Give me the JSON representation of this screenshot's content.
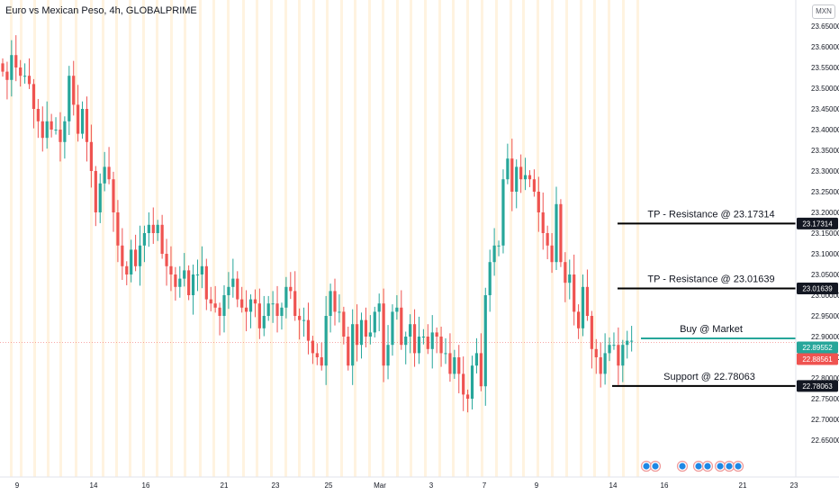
{
  "header": {
    "title": "Euro vs Mexican Peso, 4h, GLOBALPRIME",
    "currency_badge": "MXN"
  },
  "colors": {
    "up": "#26a69a",
    "down": "#ef5350",
    "session_band": "#fff3e0",
    "buy_line": "#26a69a",
    "level_line": "#000000",
    "event_icon": "#1e88e5"
  },
  "chart_data": {
    "type": "candlestick",
    "title": "Euro vs Mexican Peso, 4h, GLOBALPRIME",
    "price_axis": {
      "range": [
        22.62,
        23.69
      ],
      "ticks": [
        "23.65000",
        "23.60000",
        "23.55000",
        "23.50000",
        "23.45000",
        "23.40000",
        "23.35000",
        "23.30000",
        "23.25000",
        "23.20000",
        "23.15000",
        "23.10000",
        "23.05000",
        "23.00000",
        "22.95000",
        "22.90000",
        "22.85000",
        "22.80000",
        "22.75000",
        "22.70000",
        "22.65000"
      ]
    },
    "time_axis": {
      "labels": [
        "9",
        "14",
        "16",
        "21",
        "23",
        "25",
        "Mar",
        "3",
        "7",
        "9",
        "14",
        "16",
        "21",
        "23"
      ]
    },
    "closes": [
      23.54,
      23.52,
      23.58,
      23.55,
      23.53,
      23.53,
      23.51,
      23.45,
      23.42,
      23.38,
      23.42,
      23.4,
      23.4,
      23.37,
      23.42,
      23.53,
      23.46,
      23.39,
      23.45,
      23.37,
      23.3,
      23.2,
      23.27,
      23.31,
      23.28,
      23.2,
      23.12,
      23.07,
      23.05,
      23.11,
      23.07,
      23.12,
      23.15,
      23.17,
      23.15,
      23.17,
      23.1,
      23.07,
      23.05,
      23.02,
      23.04,
      23.06,
      23.0,
      23.05,
      23.05,
      23.07,
      22.99,
      22.98,
      22.97,
      22.95,
      23.0,
      23.02,
      23.04,
      22.99,
      22.97,
      22.96,
      22.99,
      22.98,
      22.92,
      22.95,
      22.98,
      22.98,
      22.95,
      22.97,
      23.02,
      23.01,
      22.95,
      22.94,
      22.94,
      22.89,
      22.86,
      22.85,
      22.83,
      22.95,
      23.01,
      22.96,
      22.96,
      22.9,
      22.83,
      22.93,
      22.88,
      22.94,
      22.9,
      22.91,
      22.96,
      22.98,
      22.83,
      22.88,
      22.96,
      22.97,
      22.88,
      22.9,
      22.93,
      22.86,
      22.9,
      22.9,
      22.87,
      22.91,
      22.9,
      22.86,
      22.86,
      22.81,
      22.85,
      22.81,
      22.76,
      22.75,
      22.83,
      22.86,
      22.78,
      23.0,
      23.08,
      23.12,
      23.12,
      23.28,
      23.33,
      23.25,
      23.31,
      23.28,
      23.29,
      23.28,
      23.25,
      23.2,
      23.15,
      23.12,
      23.08,
      23.22,
      23.08,
      23.03,
      23.05,
      22.96,
      22.92,
      23.02,
      22.95,
      22.87,
      22.85,
      22.81,
      22.86,
      22.88,
      22.88,
      22.83,
      22.88,
      22.89,
      22.89
    ],
    "annotations": [
      {
        "label": "TP - Resistance @ 23.17314",
        "price": 23.17314
      },
      {
        "label": "TP - Resistance @ 23.01639",
        "price": 23.01639
      },
      {
        "label": "Buy @ Market",
        "price": 22.89552
      },
      {
        "label": "Support @ 22.78063",
        "price": 22.78063
      }
    ],
    "price_tags": [
      {
        "text": "23.17314",
        "style": "black"
      },
      {
        "text": "23.01639",
        "style": "black"
      },
      {
        "text": "22.89552",
        "style": "green"
      },
      {
        "text": "22.88561",
        "style": "red"
      },
      {
        "text": "22.78063",
        "style": "black"
      }
    ],
    "current_price": 22.88561,
    "grid": false,
    "event_icon_count": 8
  }
}
